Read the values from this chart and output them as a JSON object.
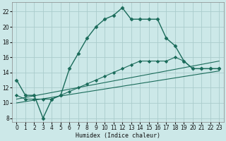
{
  "xlabel": "Humidex (Indice chaleur)",
  "bg_color": "#cce8e8",
  "grid_color": "#aacccc",
  "line_color": "#1a6b5a",
  "x_ticks": [
    0,
    1,
    2,
    3,
    4,
    5,
    6,
    7,
    8,
    9,
    10,
    11,
    12,
    13,
    14,
    15,
    16,
    17,
    18,
    19,
    20,
    21,
    22,
    23
  ],
  "y_ticks": [
    8,
    10,
    12,
    14,
    16,
    18,
    20,
    22
  ],
  "ylim": [
    7.5,
    23.2
  ],
  "xlim": [
    -0.5,
    23.5
  ],
  "main_x": [
    0,
    1,
    2,
    3,
    4,
    5,
    6,
    7,
    8,
    9,
    10,
    11,
    12,
    13,
    14,
    15,
    16,
    17,
    18,
    19,
    20,
    21,
    22,
    23
  ],
  "main_y": [
    13,
    11,
    11,
    8,
    10.5,
    11,
    14.5,
    16.5,
    18.5,
    20,
    21,
    21.5,
    22.5,
    21,
    21,
    21,
    21,
    18.5,
    17.5,
    15.5,
    14.5,
    14.5,
    14.5,
    14.5
  ],
  "line2_x": [
    0,
    1,
    2,
    3,
    4,
    5,
    6,
    7,
    8,
    9,
    10,
    11,
    12,
    13,
    14,
    15,
    16,
    17,
    18,
    19,
    20,
    21,
    22,
    23
  ],
  "line2_y": [
    11,
    10.5,
    10.5,
    10.5,
    10.5,
    11,
    11.5,
    12,
    12.5,
    13,
    13.5,
    14,
    14.5,
    15,
    15.5,
    15.5,
    15.5,
    15.5,
    16,
    15.5,
    14.5,
    14.5,
    14.5,
    14.5
  ],
  "line3_x": [
    0,
    23
  ],
  "line3_y": [
    10.5,
    15.5
  ],
  "line4_x": [
    0,
    23
  ],
  "line4_y": [
    10.0,
    14.2
  ]
}
